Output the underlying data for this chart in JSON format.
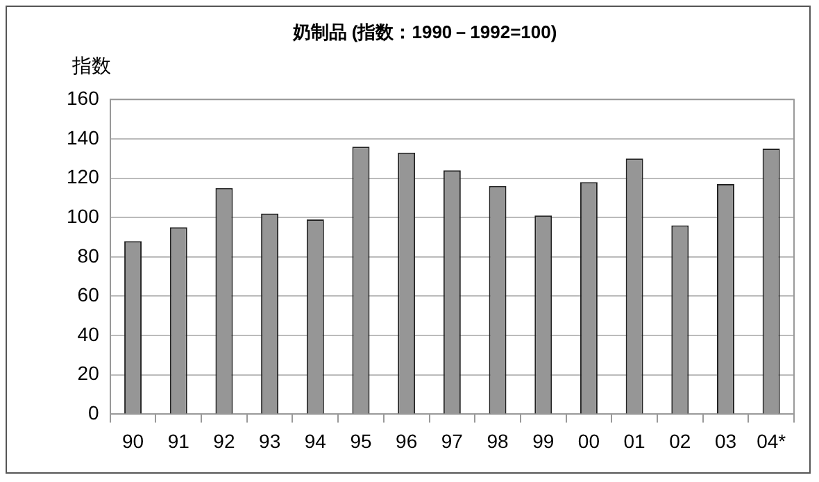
{
  "chart_data": {
    "type": "bar",
    "title": "奶制品 (指数：1990－1992=100)",
    "ylabel": "指数",
    "categories": [
      "90",
      "91",
      "92",
      "93",
      "94",
      "95",
      "96",
      "97",
      "98",
      "99",
      "00",
      "01",
      "02",
      "03",
      "04*"
    ],
    "values": [
      88,
      95,
      115,
      102,
      99,
      136,
      133,
      124,
      116,
      101,
      118,
      130,
      96,
      117,
      135
    ],
    "color": "#969696",
    "ylim": [
      0,
      160
    ],
    "yticks": [
      0,
      20,
      40,
      60,
      80,
      100,
      120,
      140,
      160
    ],
    "grid": "y",
    "legend": false
  }
}
